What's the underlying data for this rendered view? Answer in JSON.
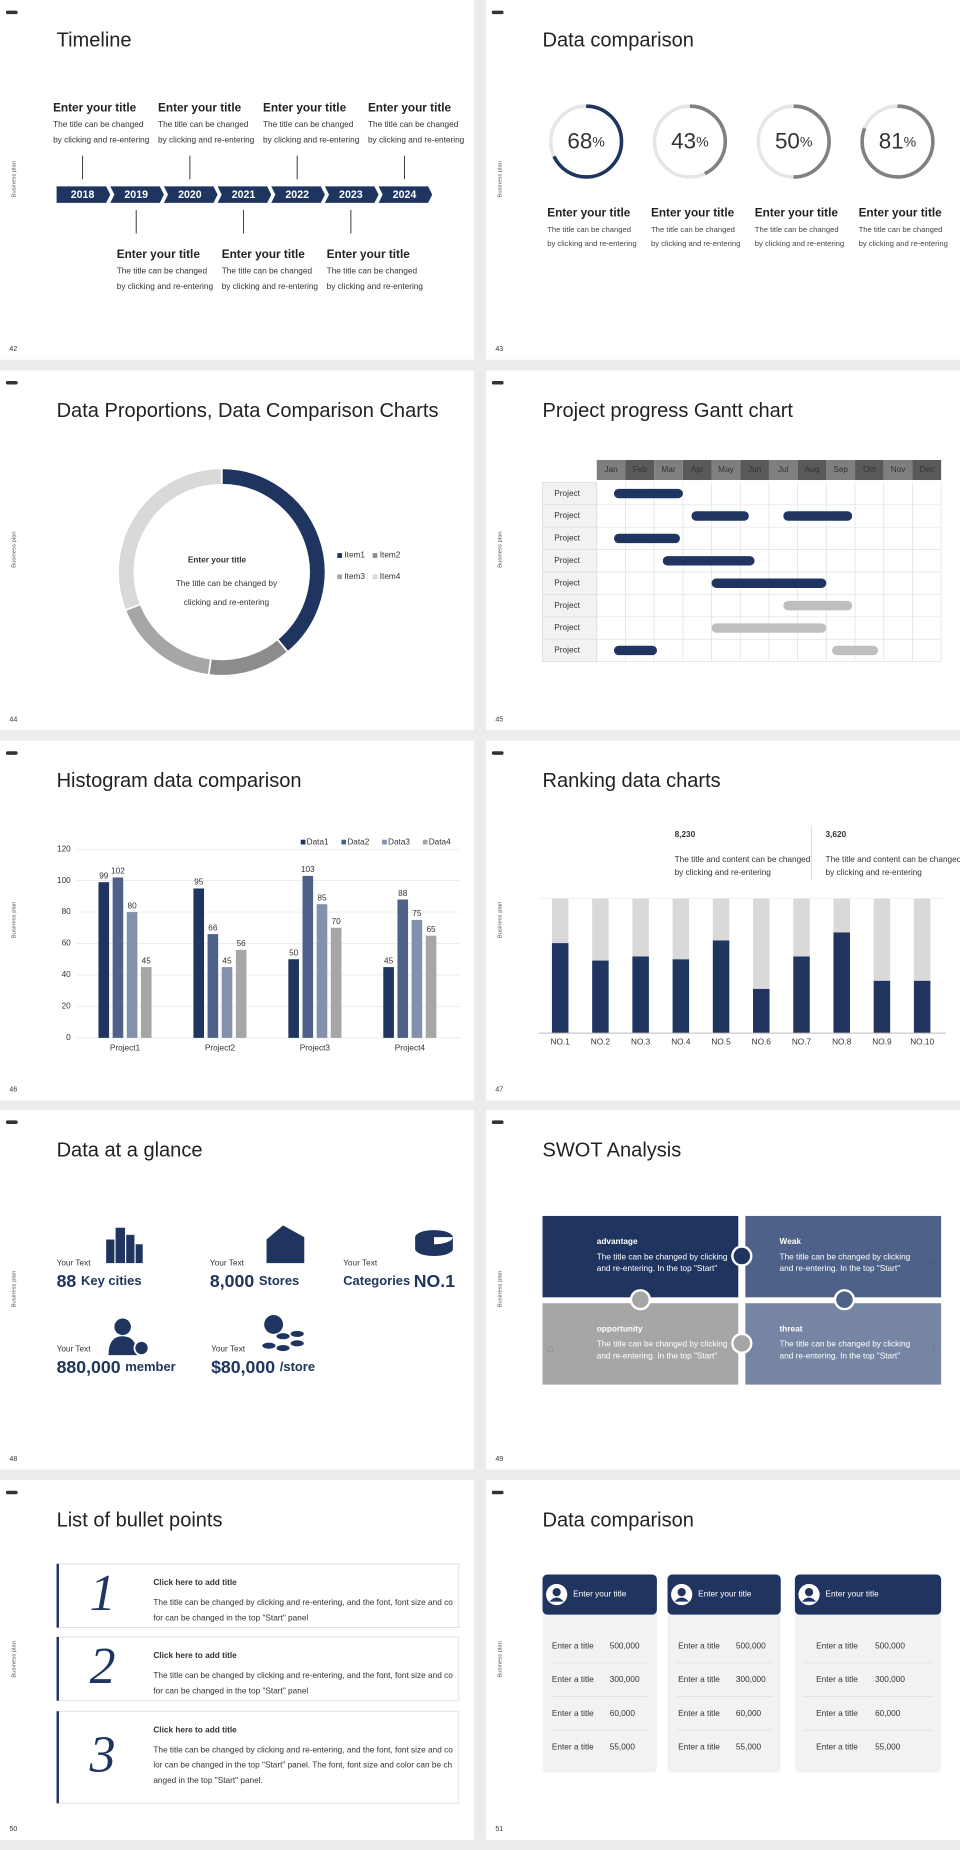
{
  "side_label": "Business plan",
  "slides": [
    {
      "page": "42",
      "title": "Timeline",
      "years": [
        "2018",
        "2019",
        "2020",
        "2021",
        "2022",
        "2023",
        "2024"
      ],
      "items": [
        {
          "title": "Enter your title",
          "lines": [
            "The title can be changed",
            "by clicking and re-entering"
          ]
        },
        {
          "title": "Enter your title",
          "lines": [
            "The title can be changed",
            "by clicking and re-entering"
          ]
        },
        {
          "title": "Enter your title",
          "lines": [
            "The title can be changed",
            "by clicking and re-entering"
          ]
        },
        {
          "title": "Enter your title",
          "lines": [
            "The title can be changed",
            "by clicking and re-entering"
          ]
        },
        {
          "title": "Enter your title",
          "lines": [
            "The title can be changed",
            "by clicking and re-entering"
          ]
        },
        {
          "title": "Enter your title",
          "lines": [
            "The title can be changed",
            "by clicking and re-entering"
          ]
        },
        {
          "title": "Enter your title",
          "lines": [
            "The title can be changed",
            "by clicking and re-entering"
          ]
        }
      ]
    },
    {
      "page": "43",
      "title": "Data comparison",
      "unit": "%",
      "rings": [
        {
          "value": 68,
          "color": "#1f3560"
        },
        {
          "value": 43,
          "color": "#808080"
        },
        {
          "value": 50,
          "color": "#808080"
        },
        {
          "value": 81,
          "color": "#808080"
        }
      ],
      "items": [
        {
          "title": "Enter your title",
          "lines": [
            "The title can be changed",
            "by clicking and re-entering"
          ]
        },
        {
          "title": "Enter your title",
          "lines": [
            "The title can be changed",
            "by clicking and re-entering"
          ]
        },
        {
          "title": "Enter your title",
          "lines": [
            "The title can be changed",
            "by clicking and re-entering"
          ]
        },
        {
          "title": "Enter your title",
          "lines": [
            "The title can be changed",
            "by clicking and re-entering"
          ]
        }
      ]
    },
    {
      "page": "44",
      "title": "Data Proportions, Data Comparison Charts",
      "chart_data": {
        "type": "donut",
        "categories": [
          "Item1",
          "Item2",
          "Item3",
          "Item4"
        ],
        "values": [
          39,
          13,
          17,
          31
        ],
        "colors": [
          "#1f3560",
          "#8c8c8c",
          "#a6a6a6",
          "#d9d9d9"
        ]
      },
      "center": {
        "title": "Enter your title",
        "lines": [
          "The title can be changed by",
          "clicking and re-entering"
        ]
      }
    },
    {
      "page": "45",
      "title": "Project progress Gantt chart",
      "chart_data": {
        "type": "gantt",
        "categories": [
          "Jan",
          "Feb",
          "Mar",
          "Apr",
          "May",
          "Jun",
          "Jul",
          "Aug",
          "Sep",
          "Oct",
          "Nov",
          "Dec"
        ],
        "xlim": [
          0,
          12
        ],
        "rows": [
          {
            "label": "Project",
            "bars": [
              {
                "start": 0.6,
                "end": 3.0,
                "color": "#1f3560"
              }
            ]
          },
          {
            "label": "Project",
            "bars": [
              {
                "start": 3.3,
                "end": 5.3,
                "color": "#1f3560"
              },
              {
                "start": 6.5,
                "end": 8.9,
                "color": "#1f3560"
              }
            ]
          },
          {
            "label": "Project",
            "bars": [
              {
                "start": 0.6,
                "end": 2.9,
                "color": "#1f3560"
              }
            ]
          },
          {
            "label": "Project",
            "bars": [
              {
                "start": 2.3,
                "end": 5.5,
                "color": "#1f3560"
              }
            ]
          },
          {
            "label": "Project",
            "bars": [
              {
                "start": 4.0,
                "end": 8.0,
                "color": "#1f3560"
              }
            ]
          },
          {
            "label": "Project",
            "bars": [
              {
                "start": 6.5,
                "end": 8.9,
                "color": "#bfbfbf"
              }
            ]
          },
          {
            "label": "Project",
            "bars": [
              {
                "start": 4.0,
                "end": 8.0,
                "color": "#bfbfbf"
              }
            ]
          },
          {
            "label": "Project",
            "bars": [
              {
                "start": 0.6,
                "end": 2.1,
                "color": "#1f3560"
              },
              {
                "start": 8.2,
                "end": 9.8,
                "color": "#bfbfbf"
              }
            ]
          }
        ]
      }
    },
    {
      "page": "46",
      "title": "Histogram data comparison",
      "chart_data": {
        "type": "bar",
        "categories": [
          "Project1",
          "Project2",
          "Project3",
          "Project4"
        ],
        "series": [
          {
            "name": "Data1",
            "color": "#1f3560",
            "values": [
              99,
              95,
              50,
              45
            ]
          },
          {
            "name": "Data2",
            "color": "#4e6289",
            "values": [
              102,
              66,
              103,
              88
            ]
          },
          {
            "name": "Data3",
            "color": "#8391ad",
            "values": [
              80,
              45,
              85,
              75
            ]
          },
          {
            "name": "Data4",
            "color": "#a6a6a6",
            "values": [
              45,
              56,
              70,
              65
            ]
          }
        ],
        "ylim": [
          0,
          120
        ],
        "yticks": [
          0,
          20,
          40,
          60,
          80,
          100,
          120
        ],
        "grid": true,
        "legend": "top-right"
      }
    },
    {
      "page": "47",
      "title": "Ranking data charts",
      "stats": [
        {
          "value": "8,230",
          "lines": [
            "The title and content can be changed",
            "by clicking and re-entering"
          ],
          "color": "#222222"
        },
        {
          "value": "3,620",
          "lines": [
            "The title and content can be changed",
            "by clicking and re-entering"
          ],
          "color": "#bfbfbf"
        }
      ],
      "chart_data": {
        "type": "stacked_bar",
        "categories": [
          "NO.1",
          "NO.2",
          "NO.3",
          "NO.4",
          "NO.5",
          "NO.6",
          "NO.7",
          "NO.8",
          "NO.9",
          "NO.10"
        ],
        "series": [
          {
            "color": "#1f3560",
            "values": [
              67,
              54,
              57,
              55,
              69,
              33,
              57,
              75,
              39,
              39
            ]
          },
          {
            "color": "#d9d9d9",
            "values": [
              33,
              46,
              43,
              45,
              31,
              67,
              43,
              25,
              61,
              61
            ]
          }
        ],
        "ylim": [
          0,
          100
        ]
      }
    },
    {
      "page": "48",
      "title": "Data at a glance",
      "items": [
        {
          "label": "Your Text",
          "value": "88",
          "text": "Key cities"
        },
        {
          "label": "Your Text",
          "value": "8,000",
          "text": "Stores"
        },
        {
          "label": "Your Text",
          "value": "NO.1",
          "text": "Categories"
        },
        {
          "label": "Your Text",
          "value": "880,000",
          "text": "member"
        },
        {
          "label": "Your Text",
          "value": "$80,000",
          "text": "/store"
        }
      ]
    },
    {
      "page": "49",
      "title": "SWOT Analysis",
      "cells": [
        {
          "letter": "S",
          "title": "advantage",
          "lines": [
            "The title can be changed by clicking",
            "and re-entering. In the top \"Start\""
          ]
        },
        {
          "letter": "W",
          "title": "Weak",
          "lines": [
            "The title can be changed by clicking",
            "and re-entering. In the top \"Start\""
          ]
        },
        {
          "letter": "O",
          "title": "opportunity",
          "lines": [
            "The title can be changed by clicking",
            "and re-entering. In the top \"Start\""
          ]
        },
        {
          "letter": "T",
          "title": "threat",
          "lines": [
            "The title can be changed by clicking",
            "and re-entering. In the top \"Start\""
          ]
        }
      ]
    },
    {
      "page": "50",
      "title": "List of bullet points",
      "items": [
        {
          "number": "1",
          "title": "Click here to add title",
          "lines": [
            "The title can be changed by clicking and re-entering, and the font, font size and co",
            "for can be changed in the top \"Start\" panel"
          ]
        },
        {
          "number": "2",
          "title": "Click here to add title",
          "lines": [
            "The title can be changed by clicking and re-entering, and the font, font size and co",
            "for can be changed in the top \"Start\" panel"
          ]
        },
        {
          "number": "3",
          "title": "Click here to add title",
          "lines": [
            "The title can be changed by clicking and re-entering, and the font, font size and co",
            "lor can be changed in the top \"Start\" panel. The font, font size and color can be ch",
            "anged in the top \"Start\" panel."
          ]
        }
      ]
    },
    {
      "page": "51",
      "title": "Data comparison",
      "cards": [
        {
          "title": "Enter your title",
          "rows": [
            [
              "Enter a title",
              "500,000"
            ],
            [
              "Enter a title",
              "300,000"
            ],
            [
              "Enter a title",
              "60,000"
            ],
            [
              "Enter a title",
              "55,000"
            ]
          ]
        },
        {
          "title": "Enter your title",
          "rows": [
            [
              "Enter a title",
              "500,000"
            ],
            [
              "Enter a title",
              "300,000"
            ],
            [
              "Enter a title",
              "60,000"
            ],
            [
              "Enter a title",
              "55,000"
            ]
          ]
        },
        {
          "title": "Enter your title",
          "rows": [
            [
              "Enter a title",
              "500,000"
            ],
            [
              "Enter a title",
              "300,000"
            ],
            [
              "Enter a title",
              "60,000"
            ],
            [
              "Enter a title",
              "55,000"
            ]
          ]
        }
      ]
    }
  ]
}
